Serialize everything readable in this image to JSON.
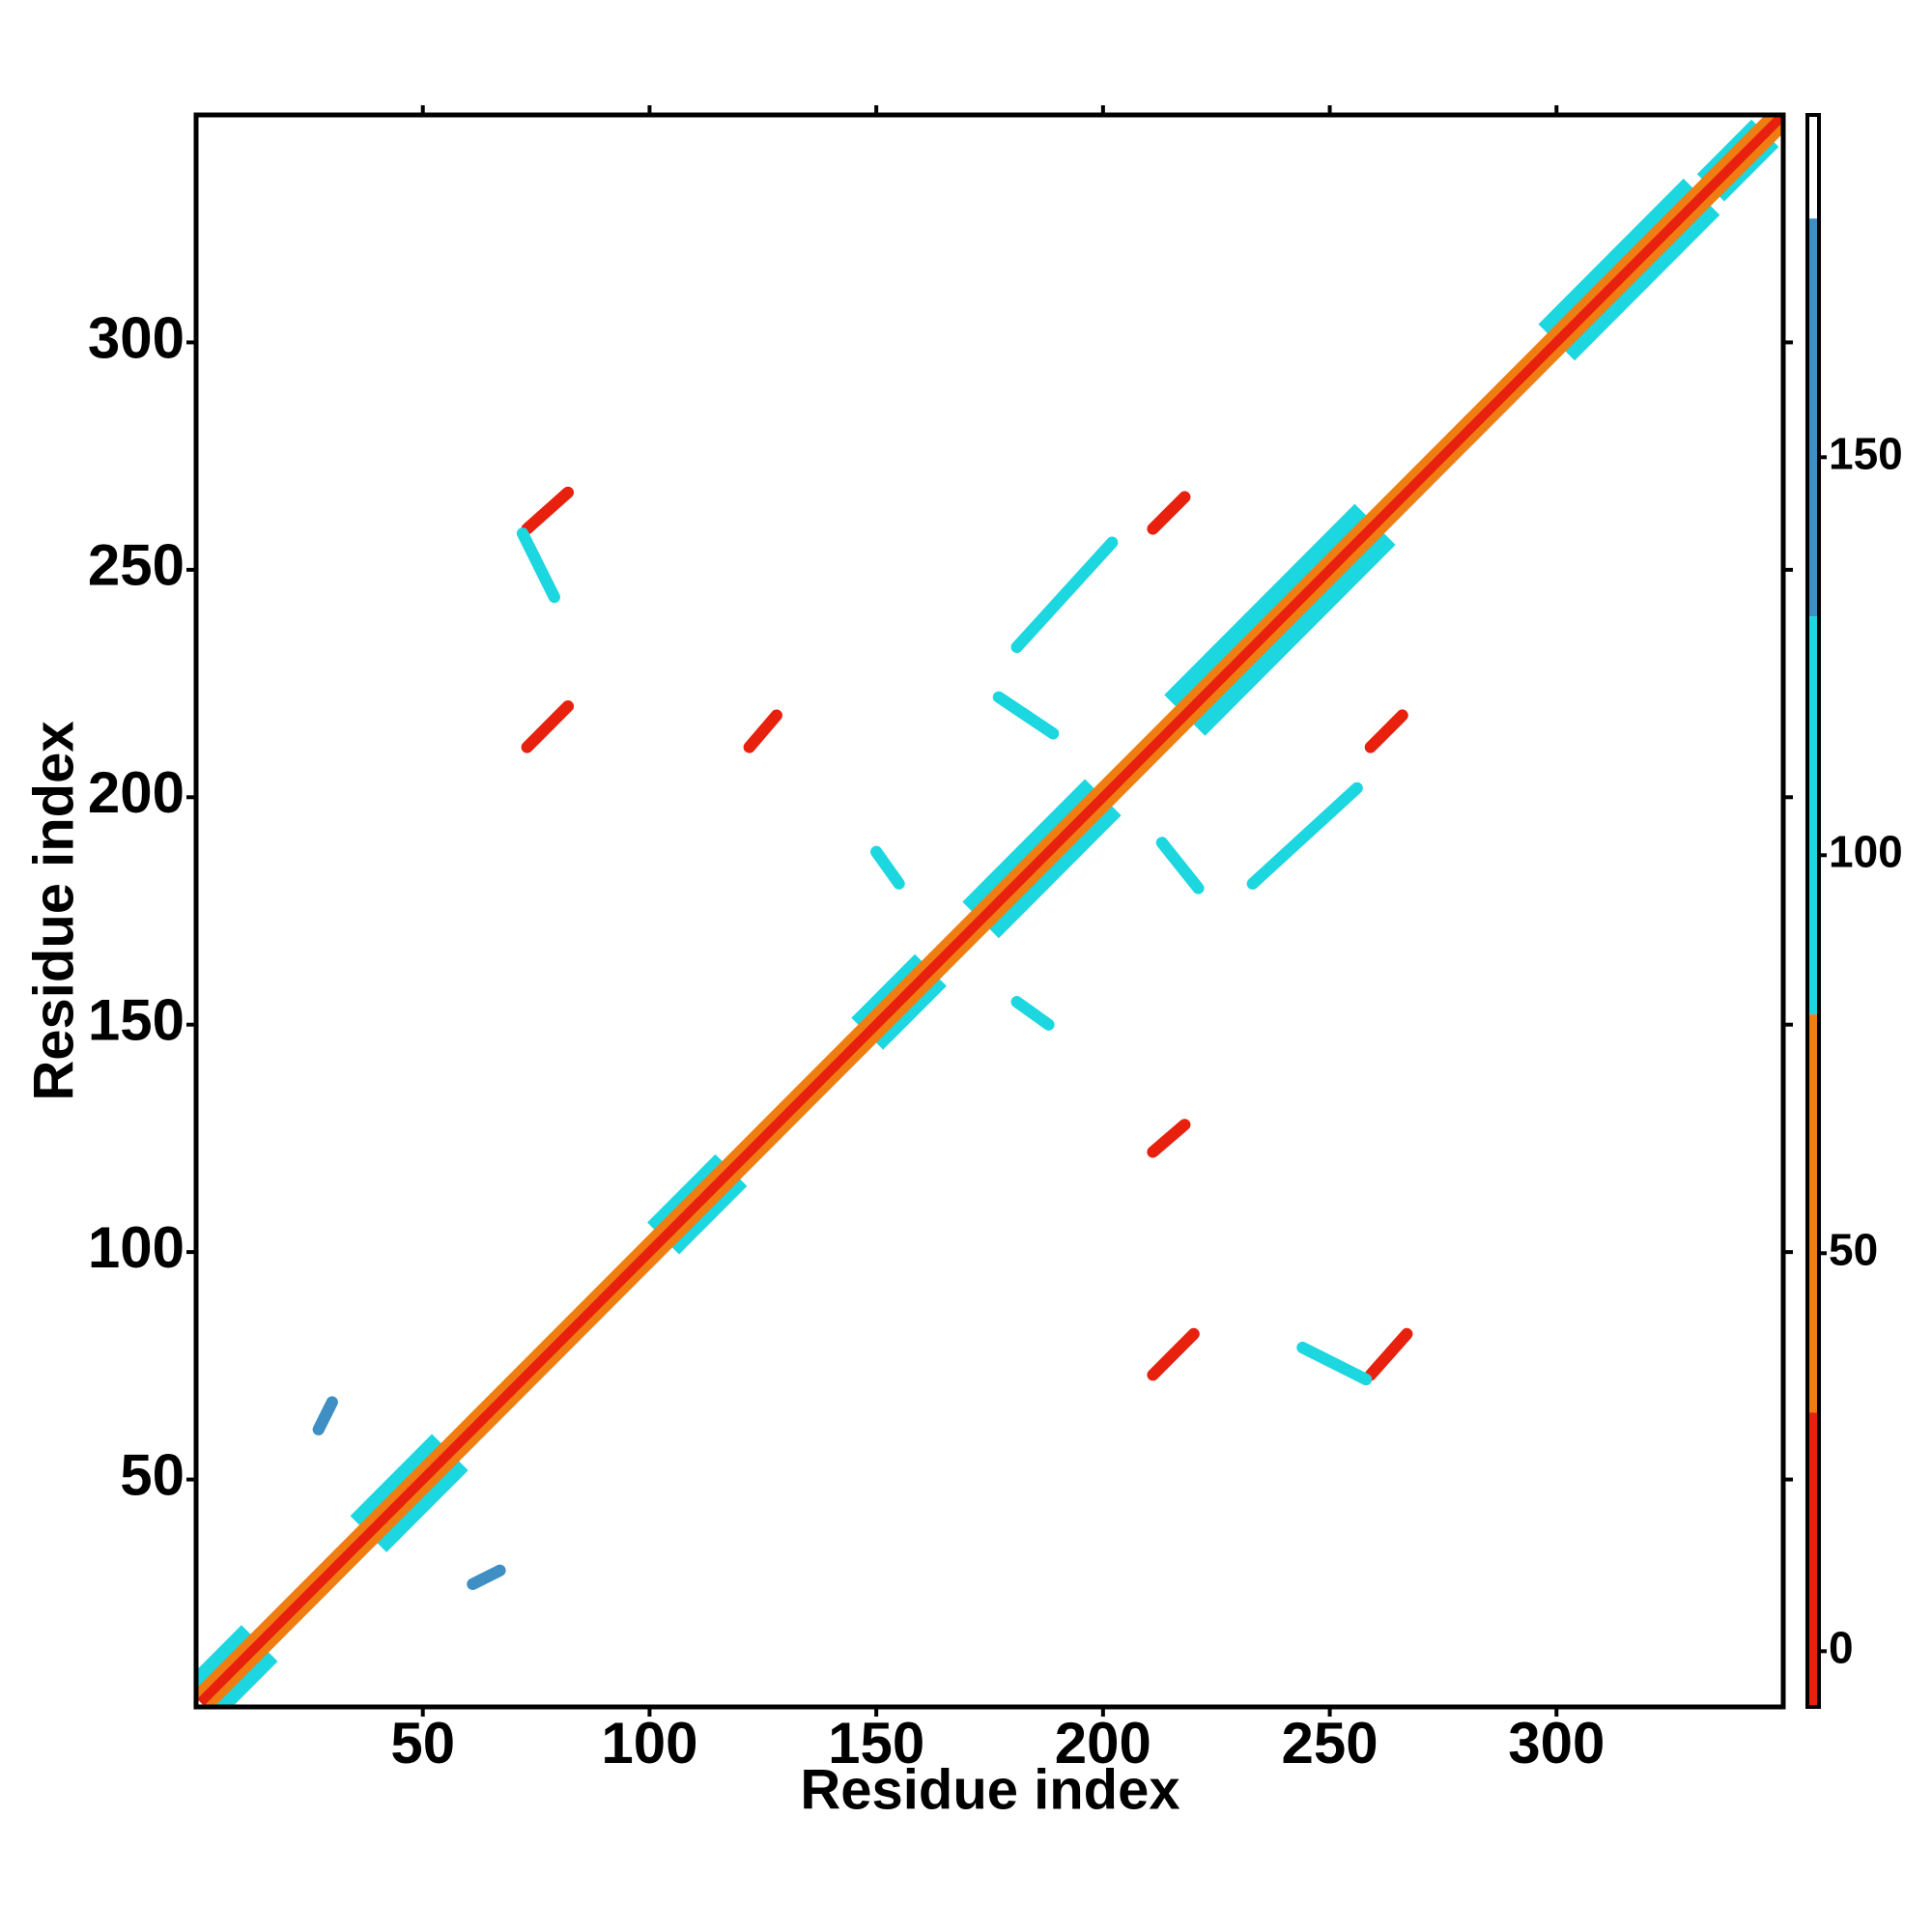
{
  "chart_data": {
    "type": "contact_map",
    "x_label": "Residue index",
    "y_label": "Residue index",
    "xlim": [
      0,
      350
    ],
    "ylim": [
      0,
      350
    ],
    "xticks": [
      50,
      100,
      150,
      200,
      250,
      300
    ],
    "yticks": [
      50,
      100,
      150,
      200,
      250,
      300
    ],
    "colorbar": {
      "lim": [
        -7,
        193
      ],
      "ticks": [
        0,
        50,
        100,
        150
      ],
      "bands": [
        {
          "from": -7,
          "to": 30,
          "color": "#e8210e"
        },
        {
          "from": 30,
          "to": 80,
          "color": "#f07d12"
        },
        {
          "from": 80,
          "to": 130,
          "color": "#1cd6e0"
        },
        {
          "from": 130,
          "to": 180,
          "color": "#3f8fc4"
        },
        {
          "from": 180,
          "to": 193,
          "color": "#ffffff"
        }
      ]
    },
    "diagonal": [
      {
        "start": 1,
        "end": 14,
        "offset": 8,
        "value": 95
      },
      {
        "start": 38,
        "end": 56,
        "offset": 8,
        "value": 95
      },
      {
        "start": 103,
        "end": 118,
        "offset": 7,
        "value": 95
      },
      {
        "start": 148,
        "end": 162,
        "offset": 7,
        "value": 95
      },
      {
        "start": 173,
        "end": 200,
        "offset": 8,
        "value": 95
      },
      {
        "start": 218,
        "end": 260,
        "offset": 9,
        "value": 95
      },
      {
        "start": 300,
        "end": 332,
        "offset": 8,
        "value": 95
      },
      {
        "start": 334,
        "end": 346,
        "offset": 6,
        "value": 95
      },
      {
        "start": 1,
        "end": 350,
        "offset": 4,
        "value": 55
      },
      {
        "start": 1,
        "end": 350,
        "offset": 1.5,
        "value": 10
      }
    ],
    "contacts": [
      {
        "x": [
          73,
          82
        ],
        "y": [
          211,
          220
        ],
        "value": 10
      },
      {
        "x": [
          211,
          220
        ],
        "y": [
          73,
          82
        ],
        "value": 10
      },
      {
        "x": [
          73,
          82
        ],
        "y": [
          259,
          267
        ],
        "value": 10
      },
      {
        "x": [
          259,
          267
        ],
        "y": [
          73,
          82
        ],
        "value": 10
      },
      {
        "x": [
          122,
          128
        ],
        "y": [
          211,
          218
        ],
        "value": 10
      },
      {
        "x": [
          211,
          218
        ],
        "y": [
          122,
          128
        ],
        "value": 10
      },
      {
        "x": [
          211,
          218
        ],
        "y": [
          259,
          266
        ],
        "value": 10
      },
      {
        "x": [
          259,
          266
        ],
        "y": [
          211,
          218
        ],
        "value": 10
      },
      {
        "x": [
          27,
          30
        ],
        "y": [
          61,
          67
        ],
        "value": 140
      },
      {
        "x": [
          61,
          67
        ],
        "y": [
          27,
          30
        ],
        "value": 140
      },
      {
        "x": [
          181,
          202
        ],
        "y": [
          233,
          256
        ],
        "value": 95
      },
      {
        "x": [
          233,
          256
        ],
        "y": [
          181,
          202
        ],
        "value": 95
      },
      {
        "x": [
          72,
          79
        ],
        "y": [
          258,
          244
        ],
        "value": 100
      },
      {
        "x": [
          244,
          258
        ],
        "y": [
          79,
          72
        ],
        "value": 100
      },
      {
        "x": [
          181,
          188
        ],
        "y": [
          155,
          150
        ],
        "value": 130
      },
      {
        "x": [
          150,
          155
        ],
        "y": [
          188,
          181
        ],
        "value": 130
      },
      {
        "x": [
          177,
          189
        ],
        "y": [
          222,
          214
        ],
        "value": 100
      },
      {
        "x": [
          213,
          221
        ],
        "y": [
          190,
          180
        ],
        "value": 100
      }
    ]
  }
}
